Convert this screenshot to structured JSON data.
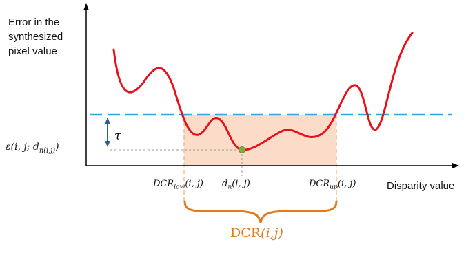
{
  "y_axis_label_lines": [
    "Error in the",
    "synthesized",
    "pixel value"
  ],
  "x_axis_label": "Disparity value",
  "epsilon_label": {
    "base": "ε(i, j; d",
    "sub": "n(i,j)",
    "tail": ")"
  },
  "tau_label": "τ",
  "dcr_low_label": {
    "base": "DCR",
    "sub": "low",
    "tail": "(i, j)"
  },
  "dn_label": {
    "base": "d",
    "sub": "n",
    "tail": "(i, j)"
  },
  "dcr_up_label": {
    "base": "DCR",
    "sub": "up",
    "tail": "(i, j)"
  },
  "bottom_label": {
    "base": "DCR",
    "arg": "(i,j)"
  },
  "colors": {
    "curve": "#E8101A",
    "threshold": "#2EA7E0",
    "region_fill": "#FBDCC8",
    "region_border": "#F6BE95",
    "brace": "#E07A20",
    "tau_arrow": "#2E5E96",
    "min_point": "#7FB03C",
    "axis": "#000000",
    "guide": "#9A9A9A"
  }
}
